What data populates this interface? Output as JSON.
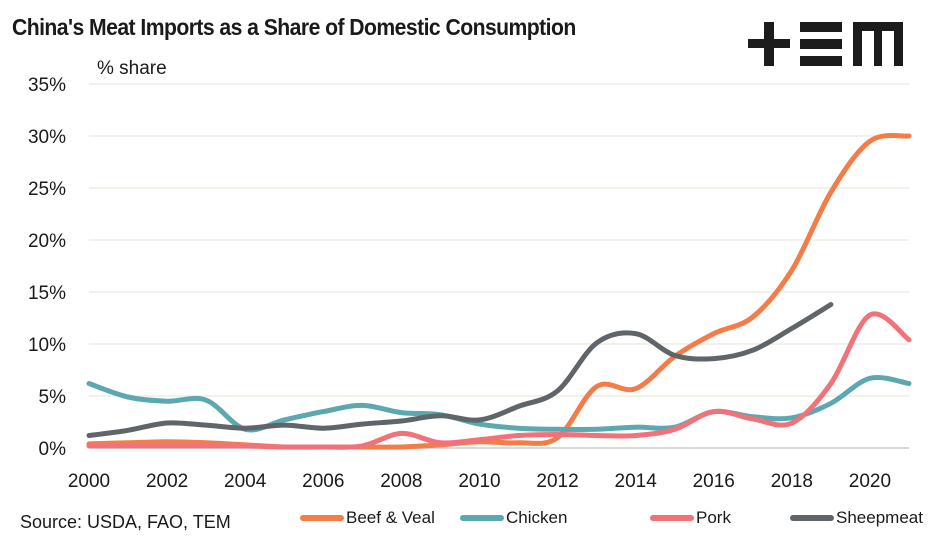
{
  "header": {
    "title": "China's Meat Imports as a Share of Domestic Consumption",
    "logo_text": "+EM",
    "logo_name": "TEM"
  },
  "footer": {
    "source": "Source: USDA, FAO, TEM"
  },
  "chart_data": {
    "type": "line",
    "title": "China's Meat Imports as a Share of Domestic Consumption",
    "xlabel": "",
    "ylabel": "% share",
    "ylim": [
      0,
      35
    ],
    "xlim": [
      2000,
      2021
    ],
    "yticks": [
      0,
      5,
      10,
      15,
      20,
      25,
      30,
      35
    ],
    "ytick_labels": [
      "0%",
      "5%",
      "10%",
      "15%",
      "20%",
      "25%",
      "30%",
      "35%"
    ],
    "xticks": [
      2000,
      2002,
      2004,
      2006,
      2008,
      2010,
      2012,
      2014,
      2016,
      2018,
      2020
    ],
    "xtick_labels": [
      "2000",
      "2002",
      "2004",
      "2006",
      "2008",
      "2010",
      "2012",
      "2014",
      "2016",
      "2018",
      "2020"
    ],
    "grid": "horizontal",
    "legend_position": "bottom",
    "x": [
      2000,
      2001,
      2002,
      2003,
      2004,
      2005,
      2006,
      2007,
      2008,
      2009,
      2010,
      2011,
      2012,
      2013,
      2014,
      2015,
      2016,
      2017,
      2018,
      2019,
      2020,
      2021
    ],
    "series": [
      {
        "name": "Beef & Veal",
        "color": "#F47C48",
        "values": [
          0.4,
          0.5,
          0.6,
          0.5,
          0.3,
          0.1,
          0.1,
          0.1,
          0.1,
          0.3,
          0.6,
          0.5,
          1.0,
          5.9,
          5.7,
          8.8,
          11.0,
          12.6,
          17.1,
          24.6,
          29.5,
          30.0
        ]
      },
      {
        "name": "Chicken",
        "color": "#5BA8B0",
        "values": [
          6.2,
          4.9,
          4.5,
          4.6,
          1.8,
          2.7,
          3.5,
          4.1,
          3.4,
          3.2,
          2.3,
          1.9,
          1.8,
          1.8,
          2.0,
          2.0,
          3.5,
          3.0,
          2.9,
          4.3,
          6.7,
          6.2
        ]
      },
      {
        "name": "Pork",
        "color": "#F2727A",
        "values": [
          0.2,
          0.2,
          0.2,
          0.2,
          0.2,
          0.1,
          0.1,
          0.2,
          1.4,
          0.5,
          0.8,
          1.2,
          1.3,
          1.2,
          1.2,
          1.8,
          3.5,
          2.8,
          2.4,
          6.2,
          12.8,
          10.4
        ]
      },
      {
        "name": "Sheepmeat",
        "color": "#5F6568",
        "values": [
          1.2,
          1.7,
          2.4,
          2.2,
          1.9,
          2.2,
          1.9,
          2.3,
          2.6,
          3.1,
          2.7,
          4.0,
          5.5,
          10.1,
          11.0,
          8.9,
          8.6,
          9.4,
          11.5,
          13.8,
          null,
          null
        ]
      }
    ]
  }
}
